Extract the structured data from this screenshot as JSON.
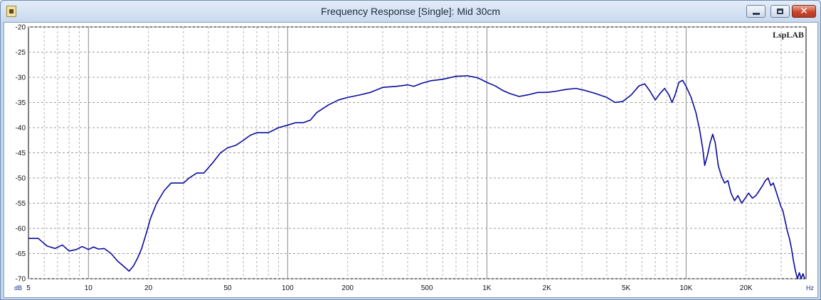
{
  "window": {
    "title": "Frequency Response [Single]: Mid 30cm",
    "controls": [
      "minimize",
      "maximize",
      "close"
    ],
    "close_glyph": "✕"
  },
  "chart_data": {
    "type": "line",
    "y_unit": "dB",
    "x_unit": "Hz",
    "watermark": "LspLAB",
    "x_scale": "log",
    "xlim": [
      5,
      40000
    ],
    "ylim": [
      -70,
      -20
    ],
    "grid": true,
    "x_tick_labels": [
      {
        "value": 5,
        "label": "5"
      },
      {
        "value": 10,
        "label": "10"
      },
      {
        "value": 20,
        "label": "20"
      },
      {
        "value": 50,
        "label": "50"
      },
      {
        "value": 100,
        "label": "100"
      },
      {
        "value": 200,
        "label": "200"
      },
      {
        "value": 500,
        "label": "500"
      },
      {
        "value": 1000,
        "label": "1K"
      },
      {
        "value": 2000,
        "label": "2K"
      },
      {
        "value": 5000,
        "label": "5K"
      },
      {
        "value": 10000,
        "label": "10K"
      },
      {
        "value": 20000,
        "label": "20K"
      }
    ],
    "y_tick_labels": [
      "-20",
      "-25",
      "-30",
      "-35",
      "-40",
      "-45",
      "-50",
      "-55",
      "-60",
      "-65",
      "-70"
    ],
    "y_ticks": [
      -20,
      -25,
      -30,
      -35,
      -40,
      -45,
      -50,
      -55,
      -60,
      -65,
      -70
    ],
    "series": [
      {
        "color": "#0a0a9e",
        "points": [
          [
            5,
            -62
          ],
          [
            5.6,
            -62
          ],
          [
            6.2,
            -63.5
          ],
          [
            6.8,
            -64
          ],
          [
            7.4,
            -63.3
          ],
          [
            8,
            -64.5
          ],
          [
            8.7,
            -64.2
          ],
          [
            9.3,
            -63.6
          ],
          [
            10,
            -64.2
          ],
          [
            10.6,
            -63.7
          ],
          [
            11.2,
            -64.1
          ],
          [
            12,
            -64
          ],
          [
            13,
            -65
          ],
          [
            14,
            -66.5
          ],
          [
            15,
            -67.5
          ],
          [
            16,
            -68.5
          ],
          [
            16.8,
            -67.5
          ],
          [
            17.6,
            -66
          ],
          [
            18.5,
            -64
          ],
          [
            19.5,
            -61
          ],
          [
            20.5,
            -58
          ],
          [
            22,
            -55
          ],
          [
            24,
            -52.5
          ],
          [
            26,
            -51
          ],
          [
            28,
            -51
          ],
          [
            30,
            -51
          ],
          [
            32,
            -50
          ],
          [
            35,
            -49
          ],
          [
            38,
            -49
          ],
          [
            42,
            -47
          ],
          [
            46,
            -45
          ],
          [
            50,
            -44
          ],
          [
            55,
            -43.5
          ],
          [
            60,
            -42.5
          ],
          [
            65,
            -41.5
          ],
          [
            70,
            -41
          ],
          [
            80,
            -41
          ],
          [
            90,
            -40
          ],
          [
            100,
            -39.5
          ],
          [
            110,
            -39
          ],
          [
            120,
            -39
          ],
          [
            130,
            -38.5
          ],
          [
            140,
            -37
          ],
          [
            160,
            -35.5
          ],
          [
            180,
            -34.5
          ],
          [
            200,
            -34
          ],
          [
            230,
            -33.5
          ],
          [
            260,
            -33
          ],
          [
            300,
            -32
          ],
          [
            350,
            -31.8
          ],
          [
            400,
            -31.5
          ],
          [
            430,
            -31.8
          ],
          [
            470,
            -31.2
          ],
          [
            520,
            -30.7
          ],
          [
            600,
            -30.4
          ],
          [
            700,
            -29.8
          ],
          [
            800,
            -29.7
          ],
          [
            900,
            -30.1
          ],
          [
            1000,
            -31
          ],
          [
            1100,
            -31.7
          ],
          [
            1200,
            -32.6
          ],
          [
            1300,
            -33.2
          ],
          [
            1450,
            -33.8
          ],
          [
            1600,
            -33.5
          ],
          [
            1800,
            -33
          ],
          [
            2000,
            -33
          ],
          [
            2200,
            -32.8
          ],
          [
            2500,
            -32.4
          ],
          [
            2800,
            -32.2
          ],
          [
            3100,
            -32.6
          ],
          [
            3500,
            -33.2
          ],
          [
            4000,
            -34
          ],
          [
            4400,
            -35
          ],
          [
            4800,
            -34.8
          ],
          [
            5300,
            -33.5
          ],
          [
            5800,
            -31.7
          ],
          [
            6200,
            -31.3
          ],
          [
            6600,
            -32.8
          ],
          [
            7000,
            -34.5
          ],
          [
            7400,
            -33.2
          ],
          [
            7800,
            -32.2
          ],
          [
            8200,
            -33.5
          ],
          [
            8500,
            -35
          ],
          [
            8800,
            -33.5
          ],
          [
            9200,
            -31
          ],
          [
            9600,
            -30.6
          ],
          [
            10000,
            -31.8
          ],
          [
            10600,
            -34
          ],
          [
            11200,
            -37
          ],
          [
            11700,
            -40.5
          ],
          [
            12100,
            -44
          ],
          [
            12400,
            -47.5
          ],
          [
            12800,
            -45.5
          ],
          [
            13200,
            -43
          ],
          [
            13600,
            -41.3
          ],
          [
            14000,
            -43
          ],
          [
            14500,
            -47.5
          ],
          [
            15000,
            -49.5
          ],
          [
            15600,
            -51
          ],
          [
            16200,
            -50.5
          ],
          [
            16800,
            -53
          ],
          [
            17500,
            -54.5
          ],
          [
            18200,
            -53.5
          ],
          [
            19000,
            -55
          ],
          [
            19800,
            -54
          ],
          [
            20600,
            -53
          ],
          [
            21500,
            -54
          ],
          [
            22400,
            -53.5
          ],
          [
            23300,
            -52.5
          ],
          [
            24200,
            -51.5
          ],
          [
            25000,
            -50.5
          ],
          [
            25800,
            -50
          ],
          [
            26600,
            -51.5
          ],
          [
            27400,
            -51
          ],
          [
            28200,
            -52.5
          ],
          [
            29000,
            -54
          ],
          [
            29800,
            -55.5
          ],
          [
            30600,
            -56.5
          ],
          [
            31400,
            -58.5
          ],
          [
            32200,
            -60.5
          ],
          [
            33000,
            -62
          ],
          [
            33800,
            -64
          ],
          [
            34600,
            -66.5
          ],
          [
            35400,
            -68.5
          ],
          [
            36200,
            -70
          ],
          [
            37000,
            -68.8
          ],
          [
            37800,
            -70
          ],
          [
            38600,
            -69
          ],
          [
            39400,
            -70
          ]
        ]
      }
    ]
  }
}
